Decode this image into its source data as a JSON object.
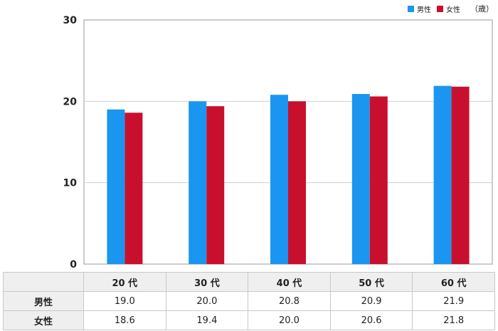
{
  "legend": {
    "male_label": "男性",
    "female_label": "女性",
    "unit": "（歳）"
  },
  "colors": {
    "male": "#1a96f0",
    "female": "#c8102e",
    "grid": "#d0d0d0",
    "axis": "#999999"
  },
  "chart_data": {
    "type": "bar",
    "categories": [
      "20 代",
      "30 代",
      "40 代",
      "50 代",
      "60 代"
    ],
    "series": [
      {
        "name": "男性",
        "values": [
          19.0,
          20.0,
          20.8,
          20.9,
          21.9
        ]
      },
      {
        "name": "女性",
        "values": [
          18.6,
          19.4,
          20.0,
          20.6,
          21.8
        ]
      }
    ],
    "ylim": [
      0,
      30
    ],
    "yticks": [
      0,
      10,
      20,
      30
    ],
    "grid": true,
    "legend_position": "top-right"
  },
  "table": {
    "headers": [
      "20 代",
      "30 代",
      "40 代",
      "50 代",
      "60 代"
    ],
    "rows": [
      {
        "label": "男性",
        "values": [
          "19.0",
          "20.0",
          "20.8",
          "20.9",
          "21.9"
        ]
      },
      {
        "label": "女性",
        "values": [
          "18.6",
          "19.4",
          "20.0",
          "20.6",
          "21.8"
        ]
      }
    ]
  }
}
